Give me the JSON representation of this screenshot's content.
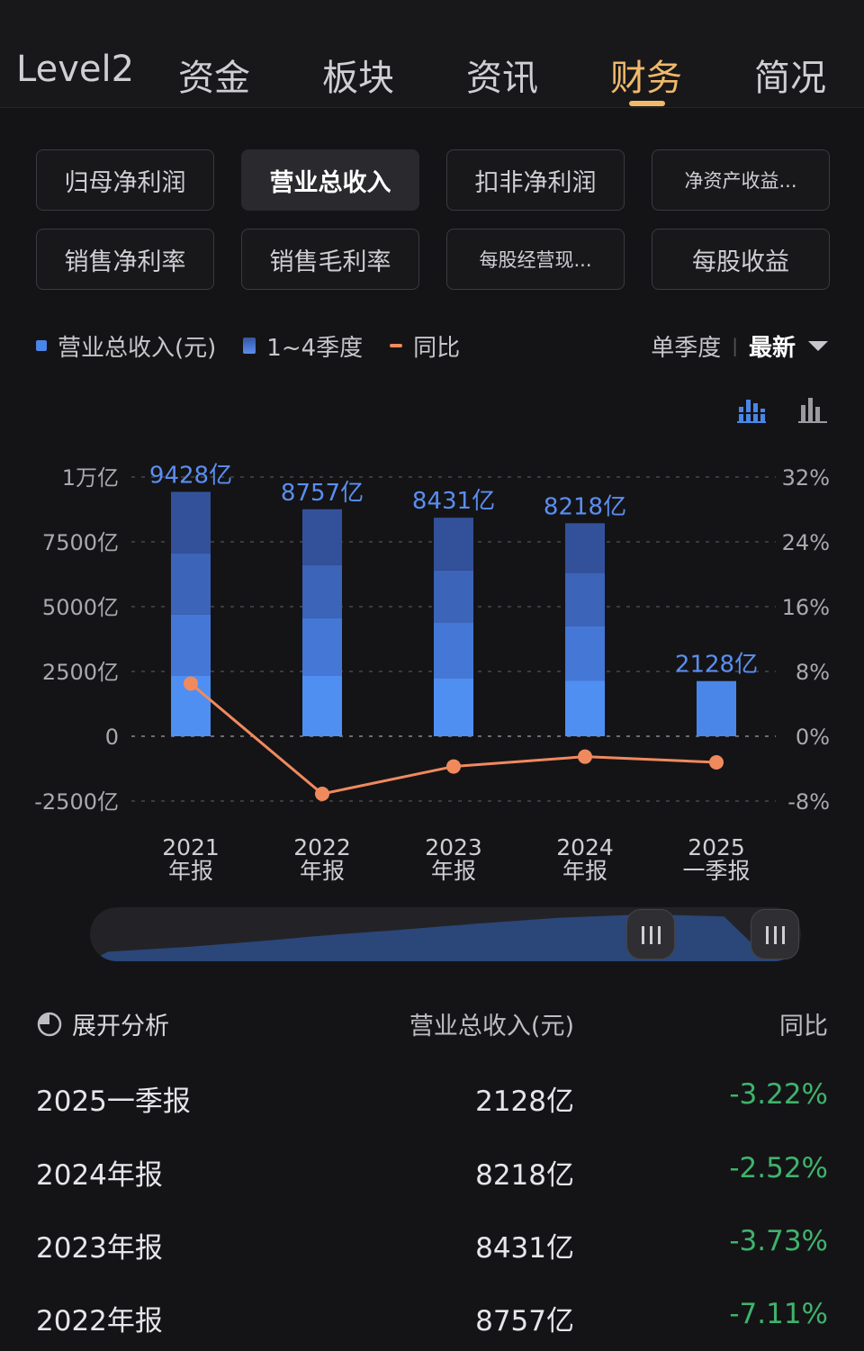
{
  "nav": {
    "tabs": [
      {
        "label": "Level2"
      },
      {
        "label": "资金"
      },
      {
        "label": "板块"
      },
      {
        "label": "资讯"
      },
      {
        "label": "财务",
        "active": true
      },
      {
        "label": "简况"
      }
    ]
  },
  "metrics": [
    {
      "label": "归母净利润"
    },
    {
      "label": "营业总收入",
      "active": true
    },
    {
      "label": "扣非净利润"
    },
    {
      "label": "净资产收益..."
    },
    {
      "label": "销售净利率"
    },
    {
      "label": "销售毛利率"
    },
    {
      "label": "每股经营现..."
    },
    {
      "label": "每股收益"
    }
  ],
  "legend": {
    "revenue": "营业总收入(元)",
    "quarters": "1~4季度",
    "yoy": "同比"
  },
  "period": {
    "single": "单季度",
    "latest": "最新"
  },
  "icons": {
    "stacked_chart": "stacked-bar-chart-icon",
    "bar_chart": "bar-chart-icon",
    "expand": "pie-chart-icon"
  },
  "chart_data": {
    "type": "bar",
    "categories": [
      "2021 年报",
      "2022 年报",
      "2023 年报",
      "2024 年报",
      "2025 一季报"
    ],
    "category_lines": [
      [
        "2021",
        "年报"
      ],
      [
        "2022",
        "年报"
      ],
      [
        "2023",
        "年报"
      ],
      [
        "2024",
        "年报"
      ],
      [
        "2025",
        "一季报"
      ]
    ],
    "series": [
      {
        "values": [
          9428,
          8757,
          8431,
          8218,
          2128
        ],
        "unit": "亿",
        "type": "stacked-bar"
      },
      {
        "values": [
          6.5,
          -7.11,
          -3.73,
          -2.52,
          -3.22
        ],
        "unit": "%",
        "type": "line",
        "axis": "right"
      }
    ],
    "stack_segments": [
      [
        2350,
        2350,
        2350,
        2378
      ],
      [
        2350,
        2200,
        2050,
        2157
      ],
      [
        2250,
        2150,
        2000,
        2031
      ],
      [
        2150,
        2100,
        2050,
        1918
      ],
      [
        2128
      ]
    ],
    "bar_labels": [
      "9428亿",
      "8757亿",
      "8431亿",
      "8218亿",
      "2128亿"
    ],
    "ylim_left": [
      -2500,
      10000
    ],
    "yticks_left": [
      "1万亿",
      "7500亿",
      "5000亿",
      "2500亿",
      "0",
      "-2500亿"
    ],
    "ylim_right": [
      -8,
      32
    ],
    "yticks_right": [
      "32%",
      "24%",
      "16%",
      "8%",
      "0%",
      "-8%"
    ],
    "grid": true,
    "colors": {
      "bar": "#4a86e8",
      "line": "#f08a5d",
      "label": "#5b8ef0"
    }
  },
  "overview_profile": [
    0.1,
    0.16,
    0.22,
    0.3,
    0.38,
    0.47,
    0.55,
    0.62,
    0.7,
    0.78,
    0.85,
    0.92,
    0.96,
    1.0,
    0.98,
    0.95,
    0.0
  ],
  "table": {
    "expand_label": "展开分析",
    "col_revenue": "营业总收入(元)",
    "col_yoy": "同比",
    "rows": [
      {
        "period": "2025一季报",
        "revenue": "2128亿",
        "yoy": "-3.22%"
      },
      {
        "period": "2024年报",
        "revenue": "8218亿",
        "yoy": "-2.52%"
      },
      {
        "period": "2023年报",
        "revenue": "8431亿",
        "yoy": "-3.73%"
      },
      {
        "period": "2022年报",
        "revenue": "8757亿",
        "yoy": "-7.11%"
      }
    ]
  }
}
